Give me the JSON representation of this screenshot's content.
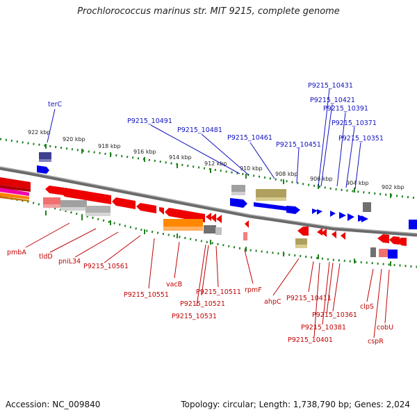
{
  "title": "Prochlorococcus marinus str. MIT 9215, complete genome",
  "footer": {
    "accession": "Accession: NC_009840",
    "summary": "Topology: circular; Length: 1,738,790 bp; Genes: 2,024"
  },
  "scale_labels": [
    "922 kbp",
    "920 kbp",
    "918 kbp",
    "916 kbp",
    "914 kbp",
    "912 kbp",
    "910 kbp",
    "908 kbp",
    "906 kbp",
    "904 kbp",
    "902 kbp"
  ],
  "gene_labels_top": [
    "terC",
    "P9215_10491",
    "P9215_10481",
    "P9215_10461",
    "P9215_10451",
    "P9215_10431",
    "P9215_10421",
    "P9215_10391",
    "P9215_10371",
    "P9215_10351"
  ],
  "gene_labels_bottom": [
    "pmbA",
    "tldD",
    "pniL34",
    "P9215_10561",
    "P9215_10551",
    "vacB",
    "P9215_10511",
    "P9215_10521",
    "P9215_10531",
    "rpmF",
    "ahpC",
    "P9215_10411",
    "P9215_10361",
    "P9215_10381",
    "P9215_10401",
    "clpS",
    "cspR",
    "cobU"
  ],
  "colors": {
    "forward_strand": "#0000ee",
    "reverse_strand": "#ee0000",
    "backbone": "#808080",
    "tick": "#208020",
    "label_top": "#1010c0",
    "label_bottom": "#c00000"
  }
}
